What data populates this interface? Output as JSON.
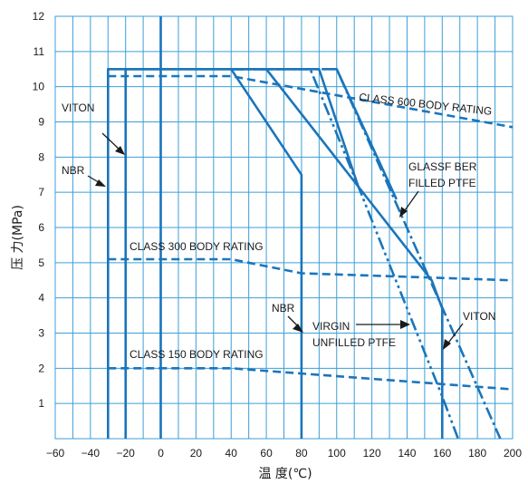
{
  "chart_data": {
    "type": "line",
    "title": "",
    "xlabel": "温 度(℃)",
    "ylabel": "压 力(MPa)",
    "xlim": [
      -60,
      200
    ],
    "ylim": [
      0,
      12
    ],
    "x_ticks": [
      -60,
      -40,
      -20,
      0,
      20,
      40,
      60,
      80,
      100,
      120,
      140,
      160,
      180,
      200
    ],
    "y_ticks": [
      1,
      2,
      3,
      4,
      5,
      6,
      7,
      8,
      9,
      10,
      11,
      12
    ],
    "grid": true,
    "colors": {
      "grid": "#3b9fd8",
      "curve": "#1b75bb",
      "text": "#1a1a1a"
    },
    "series": [
      {
        "id": "nbr-envelope",
        "style": "solid",
        "x": [
          -30,
          -30,
          40,
          80,
          80
        ],
        "y": [
          0,
          10.5,
          10.5,
          7.5,
          0
        ]
      },
      {
        "id": "viton-envelope",
        "style": "solid",
        "x": [
          -20,
          -20,
          40,
          60,
          154,
          160,
          160
        ],
        "y": [
          0,
          10.5,
          10.5,
          10.5,
          4.5,
          3.7,
          0
        ]
      },
      {
        "id": "virgin-ptfe",
        "style": "dash-dot-dot",
        "x": [
          40,
          85,
          112,
          160,
          169
        ],
        "y": [
          10.5,
          10.5,
          7.2,
          1.2,
          0
        ]
      },
      {
        "id": "glassfiber-ptfe",
        "style": "dash-dot",
        "x": [
          40,
          100,
          193
        ],
        "y": [
          10.5,
          10.5,
          0
        ]
      },
      {
        "id": "virgin-ptfe-seg",
        "style": "solid",
        "x": [
          40,
          90,
          112
        ],
        "y": [
          10.5,
          10.5,
          7.2
        ]
      },
      {
        "id": "glassfiber-ptfe-seg",
        "style": "solid",
        "x": [
          98,
          100,
          134
        ],
        "y": [
          10.5,
          10.5,
          6.8
        ]
      },
      {
        "id": "center-line",
        "style": "solid",
        "x": [
          0,
          0
        ],
        "y": [
          0,
          12
        ]
      },
      {
        "id": "class-600",
        "style": "dashed",
        "x": [
          -30,
          40,
          200
        ],
        "y": [
          10.3,
          10.3,
          8.85
        ]
      },
      {
        "id": "class-300",
        "style": "dashed",
        "x": [
          -30,
          40,
          80,
          200
        ],
        "y": [
          5.1,
          5.1,
          4.7,
          4.5
        ]
      },
      {
        "id": "class-150",
        "style": "dashed",
        "x": [
          -30,
          40,
          200
        ],
        "y": [
          2.0,
          2.0,
          1.4
        ]
      }
    ],
    "annotations": [
      {
        "id": "viton-left",
        "text": "VITON"
      },
      {
        "id": "nbr-left",
        "text": "NBR"
      },
      {
        "id": "class600",
        "text": "CLASS 600 BODY RATING"
      },
      {
        "id": "glass-1",
        "text": "GLASSF BER"
      },
      {
        "id": "glass-2",
        "text": "FILLED PTFE"
      },
      {
        "id": "class300",
        "text": "CLASS 300 BODY RATING"
      },
      {
        "id": "nbr-mid",
        "text": "NBR"
      },
      {
        "id": "virgin-1",
        "text": "VIRGIN"
      },
      {
        "id": "virgin-2",
        "text": "UNFILLED PTFE"
      },
      {
        "id": "viton-right",
        "text": "VITON"
      },
      {
        "id": "class150",
        "text": "CLASS 150 BODY RATING"
      }
    ]
  }
}
